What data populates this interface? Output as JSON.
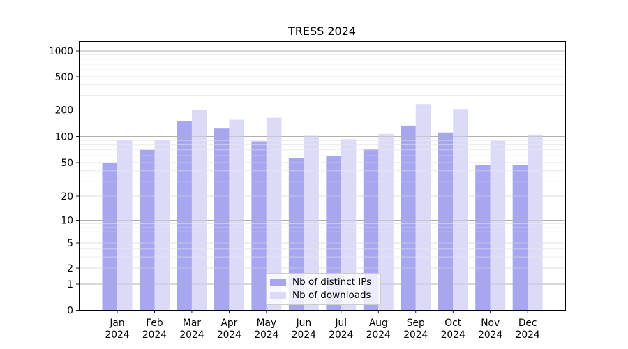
{
  "title": "TRESS 2024",
  "chart_data": {
    "type": "bar",
    "title": "TRESS 2024",
    "x_axis": {
      "categories": [
        "Jan",
        "Feb",
        "Mar",
        "Apr",
        "May",
        "Jun",
        "Jul",
        "Aug",
        "Sep",
        "Oct",
        "Nov",
        "Dec"
      ],
      "year": "2024"
    },
    "y_axis": {
      "scale": "symlog",
      "tick_values": [
        0,
        1,
        2,
        5,
        10,
        20,
        50,
        100,
        200,
        500,
        1000
      ],
      "tick_labels": [
        "0",
        "1",
        "2",
        "5",
        "10",
        "20",
        "50",
        "100",
        "200",
        "500",
        "1000"
      ],
      "ylim": [
        0,
        1000
      ]
    },
    "series": [
      {
        "name": "Nb of distinct IPs",
        "color": "#a7a7f0",
        "values": [
          50,
          70,
          150,
          123,
          88,
          56,
          59,
          71,
          133,
          111,
          47,
          47
        ]
      },
      {
        "name": "Nb of downloads",
        "color": "#dbdbf8",
        "values": [
          90,
          90,
          200,
          155,
          163,
          102,
          93,
          107,
          235,
          205,
          89,
          105
        ]
      }
    ],
    "legend": {
      "position": "lower center",
      "entries": [
        "Nb of distinct IPs",
        "Nb of downloads"
      ]
    },
    "grid": true
  }
}
